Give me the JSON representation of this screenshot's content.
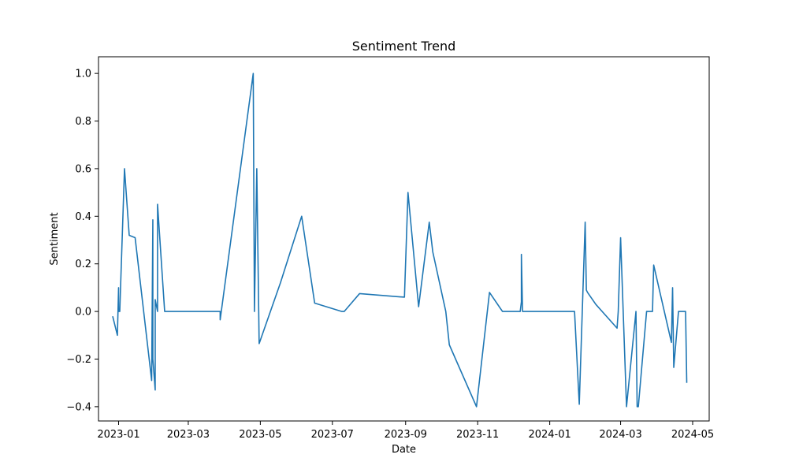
{
  "chart_data": {
    "type": "line",
    "title": "Sentiment Trend",
    "xlabel": "Date",
    "ylabel": "Sentiment",
    "xlim": [
      "2022-12-15",
      "2024-05-15"
    ],
    "ylim": [
      -0.46,
      1.07
    ],
    "grid": false,
    "line_color": "#1f77b4",
    "x_ticks": [
      "2023-01-01",
      "2023-03-01",
      "2023-05-01",
      "2023-07-01",
      "2023-09-01",
      "2023-11-01",
      "2024-01-01",
      "2024-03-01",
      "2024-05-01"
    ],
    "x_tick_labels": [
      "2023-01",
      "2023-03",
      "2023-05",
      "2023-07",
      "2023-09",
      "2023-11",
      "2024-01",
      "2024-03",
      "2024-05"
    ],
    "y_ticks": [
      -0.4,
      -0.2,
      0.0,
      0.2,
      0.4,
      0.6,
      0.8,
      1.0
    ],
    "y_tick_labels": [
      "−0.4",
      "−0.2",
      "0.0",
      "0.2",
      "0.4",
      "0.6",
      "0.8",
      "1.0"
    ],
    "series": [
      {
        "x": [
          "2022-12-27",
          "2022-12-31",
          "2023-01-01",
          "2023-01-01",
          "2023-01-02",
          "2023-01-06",
          "2023-01-10",
          "2023-01-15",
          "2023-01-29",
          "2023-01-30",
          "2023-01-30",
          "2023-02-01",
          "2023-02-01",
          "2023-02-03",
          "2023-02-03",
          "2023-02-09",
          "2023-02-09",
          "2023-02-18",
          "2023-03-28",
          "2023-03-28",
          "2023-04-25",
          "2023-04-26",
          "2023-04-28",
          "2023-04-30",
          "2023-05-18",
          "2023-06-05",
          "2023-06-16",
          "2023-07-09",
          "2023-07-11",
          "2023-07-24",
          "2023-08-31",
          "2023-09-03",
          "2023-09-12",
          "2023-09-21",
          "2023-09-24",
          "2023-10-05",
          "2023-10-08",
          "2023-10-31",
          "2023-11-11",
          "2023-11-22",
          "2023-12-07",
          "2023-12-08",
          "2023-12-08",
          "2023-12-09",
          "2024-01-22",
          "2024-01-26",
          "2024-01-31",
          "2024-02-01",
          "2024-02-02",
          "2024-02-09",
          "2024-02-27",
          "2024-02-28",
          "2024-03-01",
          "2024-03-06",
          "2024-03-14",
          "2024-03-15",
          "2024-03-16",
          "2024-03-23",
          "2024-03-24",
          "2024-03-28",
          "2024-03-29",
          "2024-04-13",
          "2024-04-14",
          "2024-04-15",
          "2024-04-19",
          "2024-04-25",
          "2024-04-26"
        ],
        "y": [
          -0.02,
          -0.1,
          0.1,
          0.0,
          0.0,
          0.6,
          0.32,
          0.31,
          -0.29,
          0.385,
          -0.2,
          -0.33,
          0.05,
          0.0,
          0.45,
          0.0,
          0.0,
          0.0,
          0.0,
          -0.035,
          1.0,
          0.0,
          0.6,
          -0.135,
          0.12,
          0.4,
          0.035,
          0.0,
          0.0,
          0.075,
          0.06,
          0.5,
          0.02,
          0.375,
          0.25,
          0.0,
          -0.14,
          -0.4,
          0.08,
          0.0,
          0.0,
          0.04,
          0.24,
          0.0,
          0.0,
          -0.39,
          0.375,
          0.09,
          0.08,
          0.03,
          -0.07,
          0.0,
          0.31,
          -0.4,
          0.0,
          -0.4,
          -0.4,
          0.0,
          0.0,
          0.0,
          0.195,
          -0.13,
          0.1,
          -0.235,
          0.0,
          0.0,
          -0.3
        ]
      }
    ]
  }
}
